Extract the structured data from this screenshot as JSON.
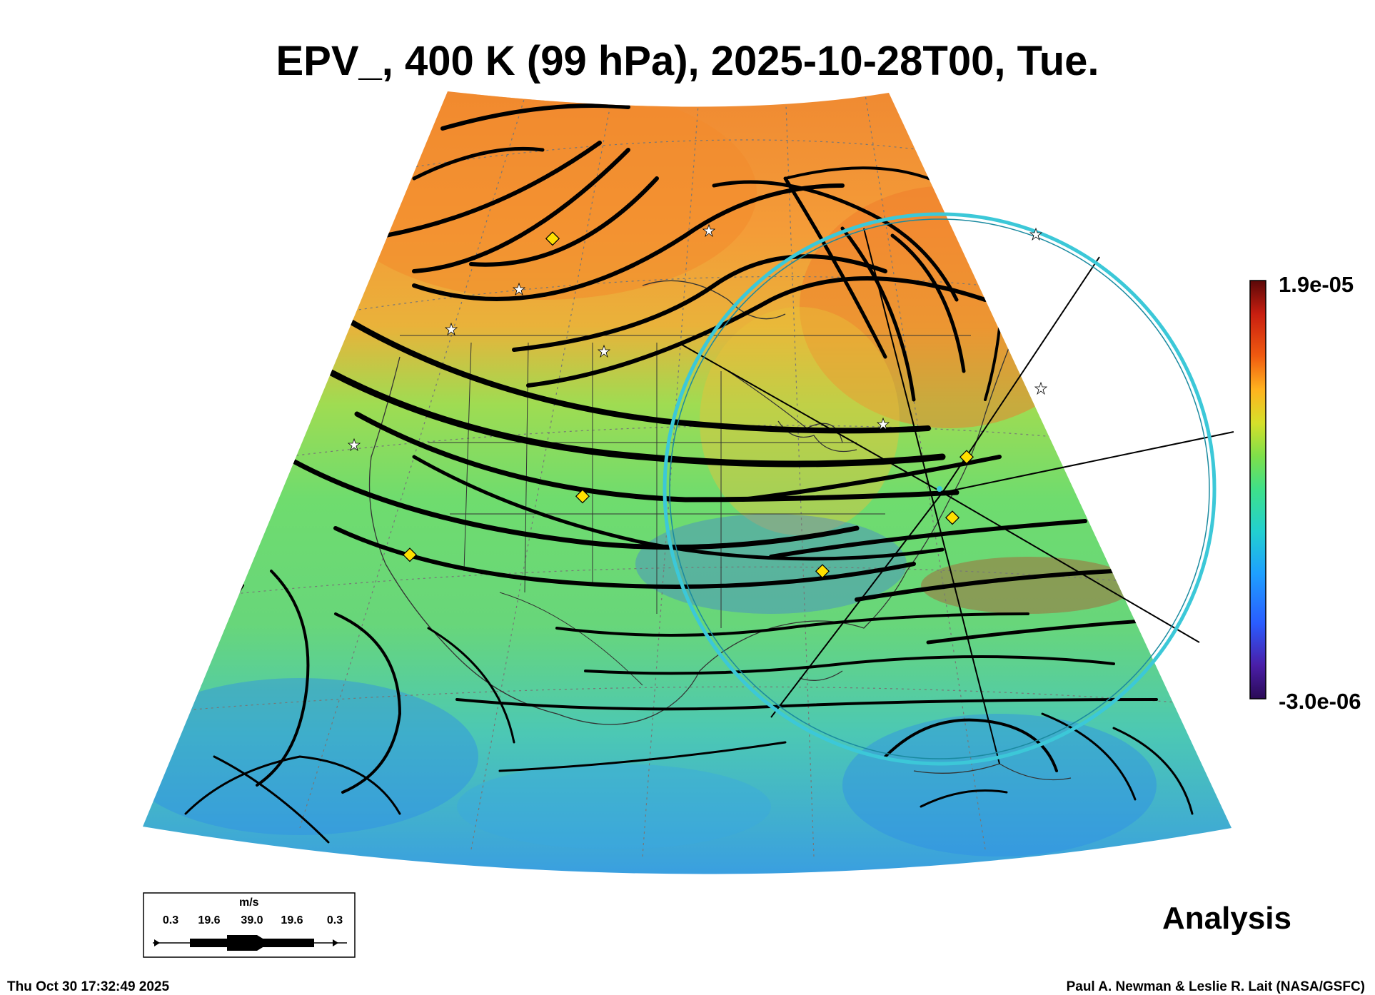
{
  "title": "EPV_, 400 K (99 hPa), 2025-10-28T00, Tue.",
  "colorbar": {
    "max_label": "1.9e-05",
    "min_label": "-3.0e-06",
    "colors": [
      "#3b0a4a",
      "#4a1ea8",
      "#2a5cff",
      "#1ea0ff",
      "#22d0d0",
      "#3ee08a",
      "#6ae04a",
      "#b6e23a",
      "#f2d22a",
      "#ff9a1e",
      "#f05a10",
      "#c81e10",
      "#6a0a0a"
    ]
  },
  "vector_scale": {
    "unit": "m/s",
    "ticks": [
      "0.3",
      "19.6",
      "39.0",
      "19.6",
      "0.3"
    ]
  },
  "label_analysis": "Analysis",
  "footer": {
    "timestamp": "Thu Oct 30 17:32:49 2025",
    "credit": "Paul A. Newman & Leslie R. Lait (NASA/GSFC)"
  },
  "map_colors": {
    "polar_orange": "#f6a03a",
    "mid_green": "#7ee06a",
    "tropical_cyan": "#3ec8d8",
    "ring": "#3cc8d8",
    "marker": "#ffe000"
  }
}
